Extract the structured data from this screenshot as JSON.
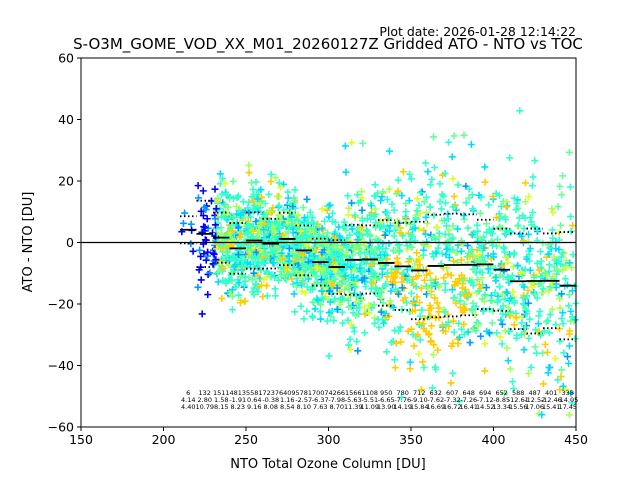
{
  "chart_data": {
    "type": "scatter",
    "title": "S-O3M_GOME_VOD_XX_M01_20260127Z Gridded ATO - NTO vs TOC",
    "subtitle": "Plot date: 2026-01-28 12:14:22",
    "xlabel": "NTO Total Ozone Column [DU]",
    "ylabel": "ATO - NTO [DU]",
    "xlim": [
      150,
      450
    ],
    "ylim": [
      -60,
      60
    ],
    "xticks": [
      150,
      200,
      250,
      300,
      350,
      400,
      450
    ],
    "yticks": [
      -60,
      -40,
      -20,
      0,
      20,
      40,
      60
    ],
    "grid": false,
    "bin_width": 10,
    "bin_starts": [
      210,
      220,
      230,
      240,
      250,
      260,
      270,
      280,
      290,
      300,
      310,
      320,
      330,
      340,
      350,
      360,
      370,
      380,
      390,
      400,
      410,
      420,
      430,
      440
    ],
    "bin_counts": [
      "6",
      "132",
      "1511",
      "4813",
      "5581",
      "7237",
      "6409",
      "5781",
      "7007",
      "4266",
      "1566",
      "1108",
      "950",
      "780",
      "712",
      "632",
      "607",
      "648",
      "694",
      "652",
      "588",
      "487",
      "401",
      "338"
    ],
    "bin_means": [
      "4.14",
      "2.80",
      "1.58",
      "-1.91",
      "0.64",
      "-0.38",
      "1.16",
      "-2.57",
      "-6.37",
      "-7.98",
      "-5.63",
      "-5.51",
      "-6.65",
      "-7.76",
      "-9.10",
      "-7.62",
      "-7.32",
      "-7.26",
      "-7.12",
      "-8.85",
      "-12.61",
      "-12.52",
      "-12.46",
      "-14.05"
    ],
    "bin_stds": [
      "4.40",
      "10.79",
      "8.15",
      "8.23",
      "9.16",
      "8.08",
      "8.54",
      "8.10",
      "7.63",
      "8.70",
      "11.39",
      "11.09",
      "13.90",
      "14.19",
      "15.84",
      "16.69",
      "16.72",
      "16.41",
      "14.52",
      "13.34",
      "15.56",
      "17.06",
      "15.41",
      "17.45"
    ],
    "colors": [
      "#0000ff",
      "#0099ff",
      "#00ddff",
      "#33ffcc",
      "#66ff99",
      "#aaff55",
      "#ddff22",
      "#ffcc00",
      "#ff9900"
    ]
  }
}
